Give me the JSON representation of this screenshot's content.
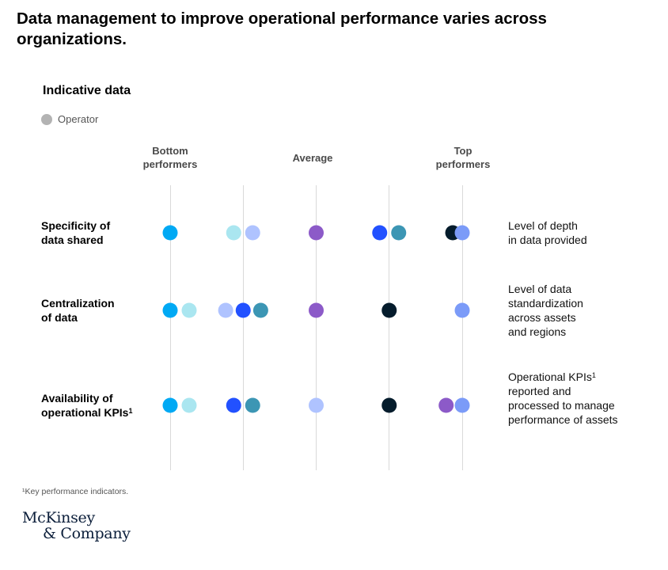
{
  "title": "Data management to improve operational performance varies across organizations.",
  "subtitle": "Indicative data",
  "legend": {
    "label": "Operator",
    "color": "#b3b3b3"
  },
  "chart_data": {
    "type": "scatter",
    "columns": [
      "Bottom\nperformers",
      "",
      "Average",
      "",
      "Top\nperformers"
    ],
    "colors": {
      "c1": "#00a9f4",
      "c2": "#aae6f0",
      "c3": "#afc3ff",
      "c4": "#8c5ac8",
      "c5": "#2251ff",
      "c6": "#3c96b4",
      "c7": "#051c2c",
      "c8": "#7b9bf8"
    },
    "rows": [
      {
        "label": "Specificity of\ndata shared",
        "label_sup": "",
        "description": "Level of depth\nin data provided",
        "points": [
          {
            "position": 1,
            "color": "c1"
          },
          {
            "position": 1.87,
            "color": "c2"
          },
          {
            "position": 2.13,
            "color": "c3"
          },
          {
            "position": 3,
            "color": "c4"
          },
          {
            "position": 3.87,
            "color": "c5"
          },
          {
            "position": 4.13,
            "color": "c6"
          },
          {
            "position": 4.87,
            "color": "c7"
          },
          {
            "position": 5,
            "color": "c8"
          }
        ]
      },
      {
        "label": "Centralization\nof data",
        "label_sup": "",
        "description": "Level of data\nstandardization\nacross assets\nand regions",
        "points": [
          {
            "position": 1,
            "color": "c1"
          },
          {
            "position": 1.26,
            "color": "c2"
          },
          {
            "position": 1.76,
            "color": "c3"
          },
          {
            "position": 2,
            "color": "c5"
          },
          {
            "position": 2.24,
            "color": "c6"
          },
          {
            "position": 3,
            "color": "c4"
          },
          {
            "position": 4,
            "color": "c7"
          },
          {
            "position": 5,
            "color": "c8"
          }
        ]
      },
      {
        "label": "Availability of\noperational KPIs",
        "label_sup": "1",
        "description_line1": "Operational KPIs",
        "description_sup": "1",
        "description_rest": "reported and\nprocessed to manage\nperformance of assets",
        "points": [
          {
            "position": 1,
            "color": "c1"
          },
          {
            "position": 1.26,
            "color": "c2"
          },
          {
            "position": 1.87,
            "color": "c5"
          },
          {
            "position": 2.13,
            "color": "c6"
          },
          {
            "position": 3,
            "color": "c3"
          },
          {
            "position": 4,
            "color": "c7"
          },
          {
            "position": 4.78,
            "color": "c4"
          },
          {
            "position": 5,
            "color": "c8"
          }
        ]
      }
    ]
  },
  "footnote": "¹Key performance indicators.",
  "logo": {
    "line1": "McKinsey",
    "line2": "& Company"
  }
}
